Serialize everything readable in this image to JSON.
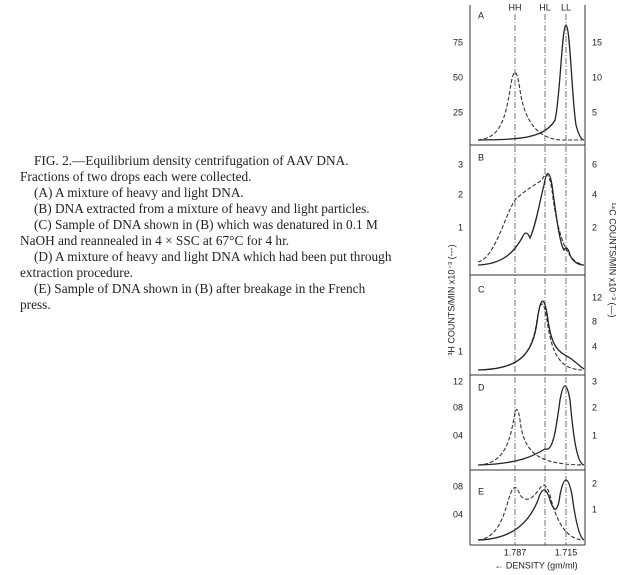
{
  "caption": [
    "FIG. 2.—Equilibrium density centrifugation of AAV DNA. Fractions of two drops each were collected.",
    "(A) A mixture of heavy and light DNA.",
    "(B) DNA extracted from a mixture of heavy and light particles.",
    "(C) Sample of DNA shown in (B) which was denatured in 0.1 M NaOH and reannealed in 4 × SSC at 67°C for 4 hr.",
    "(D) A mixture of heavy and light DNA which had been put through extraction procedure.",
    "(E) Sample of DNA shown in (B) after breakage in the French press."
  ],
  "figure": {
    "bands": [
      "HH",
      "HL",
      "LL"
    ],
    "panels": [
      {
        "letter": "A",
        "left_ticks": [
          "75",
          "50",
          "25"
        ],
        "right_ticks": [
          "15",
          "10",
          "5"
        ]
      },
      {
        "letter": "B",
        "left_ticks": [
          "3",
          "2",
          "1"
        ],
        "right_ticks": [
          "6",
          "4",
          "2"
        ]
      },
      {
        "letter": "C",
        "left_ticks": [
          "1"
        ],
        "right_ticks": [
          "12",
          "8",
          "4"
        ]
      },
      {
        "letter": "D",
        "left_ticks": [
          "12",
          "08",
          "04"
        ],
        "right_ticks": [
          "3",
          "2",
          "1"
        ]
      },
      {
        "letter": "E",
        "left_ticks": [
          "08",
          "04"
        ],
        "right_ticks": [
          "2",
          "1"
        ]
      }
    ],
    "left_axis_title": "³H COUNTS/MIN x10⁻³ (---)",
    "right_axis_title": "¹⁴C COUNTS/MIN x10⁻³ (—)",
    "x_ticks": [
      "1.787",
      "1.715"
    ],
    "x_axis_title": "← DENSITY (gm/ml)"
  }
}
